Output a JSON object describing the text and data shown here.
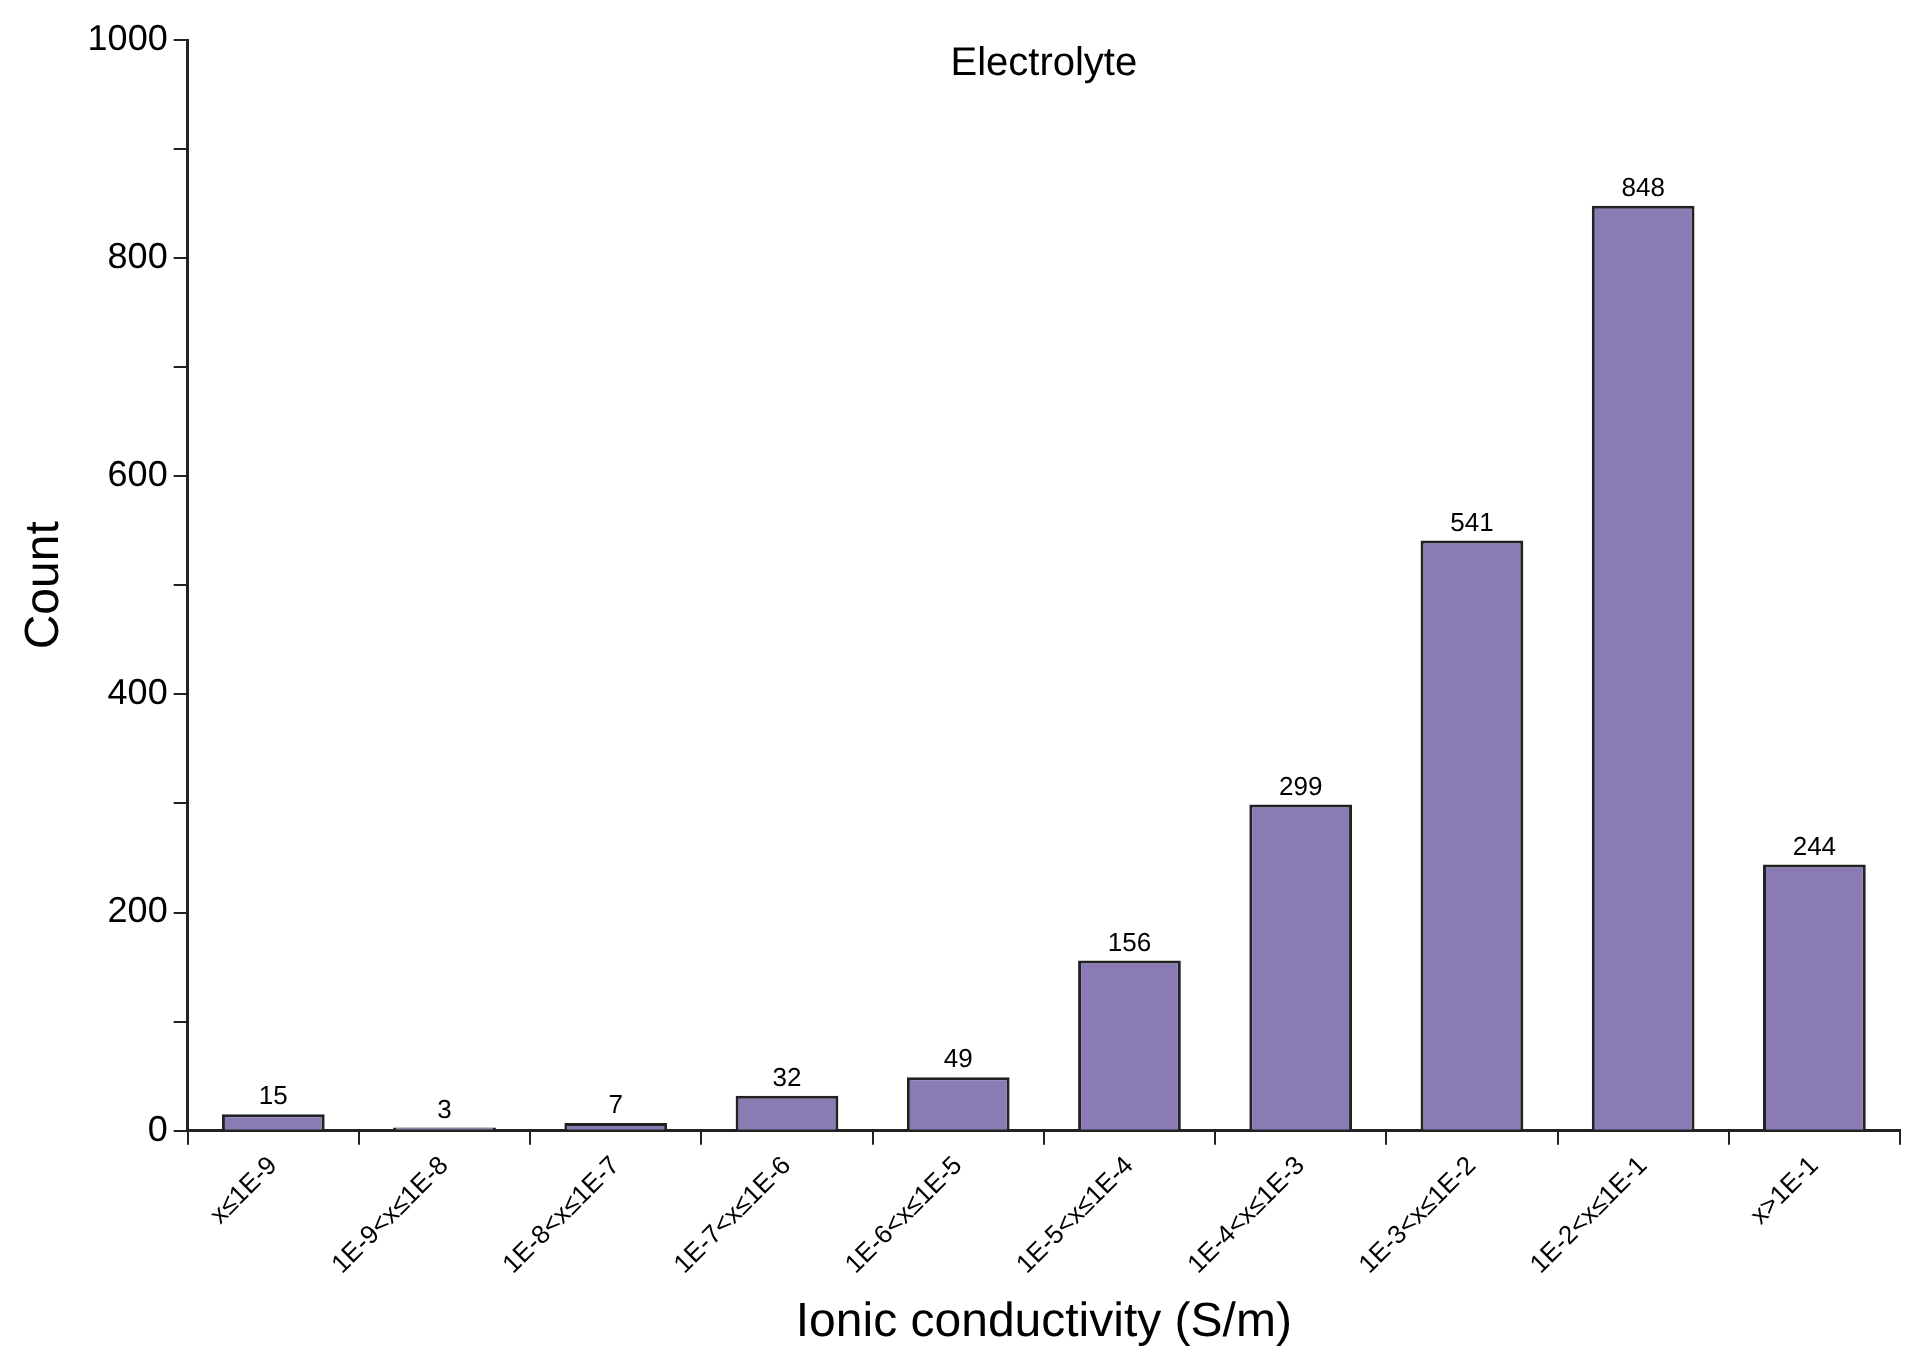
{
  "chart_data": {
    "type": "bar",
    "title": "Electrolyte",
    "xlabel": "Ionic conductivity (S/m)",
    "ylabel": "Count",
    "categories": [
      "x≤1E-9",
      "1E-9<x≤1E-8",
      "1E-8<x≤1E-7",
      "1E-7<x≤1E-6",
      "1E-6<x≤1E-5",
      "1E-5<x≤1E-4",
      "1E-4<x≤1E-3",
      "1E-3<x≤1E-2",
      "1E-2<x≤1E-1",
      "x>1E-1"
    ],
    "values": [
      15,
      3,
      7,
      32,
      49,
      156,
      299,
      541,
      848,
      244
    ],
    "color": "#8b7bb5",
    "ylim": [
      0,
      1000
    ],
    "yticks": [
      0,
      {
        "value": 100,
        "label": null
      },
      200,
      {
        "value": 300,
        "label": null
      },
      400,
      {
        "value": 500,
        "label": null
      },
      600,
      {
        "value": 700,
        "label": null
      },
      800,
      {
        "value": 900,
        "label": null
      },
      1000
    ],
    "data_labels": true,
    "grid": false,
    "legend": false
  }
}
